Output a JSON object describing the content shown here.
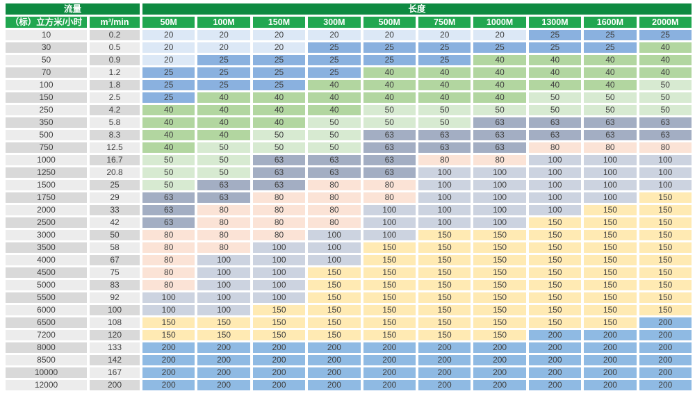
{
  "header": {
    "flow_label": "流量",
    "length_label": "长度"
  },
  "chart_data": {
    "type": "table",
    "column_group_flow": "流量",
    "column_group_length": "长度",
    "flow_columns": [
      "（标）立方米/小时",
      "m³/min"
    ],
    "length_columns": [
      "50M",
      "100M",
      "150M",
      "300M",
      "500M",
      "750M",
      "1000M",
      "1300M",
      "1600M",
      "2000M"
    ],
    "rows": [
      {
        "flow_m3h": "10",
        "flow_m3min": "0.2",
        "diameters": [
          20,
          20,
          20,
          20,
          20,
          20,
          20,
          25,
          25,
          25
        ]
      },
      {
        "flow_m3h": "30",
        "flow_m3min": "0.5",
        "diameters": [
          20,
          20,
          20,
          25,
          25,
          25,
          25,
          25,
          25,
          40
        ]
      },
      {
        "flow_m3h": "50",
        "flow_m3min": "0.9",
        "diameters": [
          20,
          25,
          25,
          25,
          25,
          25,
          40,
          40,
          40,
          40
        ]
      },
      {
        "flow_m3h": "70",
        "flow_m3min": "1.2",
        "diameters": [
          25,
          25,
          25,
          25,
          40,
          40,
          40,
          40,
          40,
          40
        ]
      },
      {
        "flow_m3h": "100",
        "flow_m3min": "1.8",
        "diameters": [
          25,
          25,
          25,
          40,
          40,
          40,
          40,
          40,
          40,
          50
        ]
      },
      {
        "flow_m3h": "150",
        "flow_m3min": "2.5",
        "diameters": [
          25,
          40,
          40,
          40,
          40,
          40,
          40,
          50,
          50,
          50
        ]
      },
      {
        "flow_m3h": "250",
        "flow_m3min": "4.2",
        "diameters": [
          40,
          40,
          40,
          40,
          50,
          50,
          50,
          50,
          50,
          50
        ]
      },
      {
        "flow_m3h": "350",
        "flow_m3min": "5.8",
        "diameters": [
          40,
          40,
          40,
          50,
          50,
          50,
          63,
          63,
          63,
          63
        ]
      },
      {
        "flow_m3h": "500",
        "flow_m3min": "8.3",
        "diameters": [
          40,
          40,
          50,
          50,
          63,
          63,
          63,
          63,
          63,
          63
        ]
      },
      {
        "flow_m3h": "750",
        "flow_m3min": "12.5",
        "diameters": [
          40,
          50,
          50,
          50,
          63,
          63,
          63,
          80,
          80,
          80
        ]
      },
      {
        "flow_m3h": "1000",
        "flow_m3min": "16.7",
        "diameters": [
          50,
          50,
          63,
          63,
          63,
          80,
          80,
          100,
          100,
          100
        ]
      },
      {
        "flow_m3h": "1250",
        "flow_m3min": "20.8",
        "diameters": [
          50,
          50,
          63,
          63,
          63,
          100,
          100,
          100,
          100,
          100
        ]
      },
      {
        "flow_m3h": "1500",
        "flow_m3min": "25",
        "diameters": [
          50,
          63,
          63,
          80,
          80,
          100,
          100,
          100,
          100,
          100
        ]
      },
      {
        "flow_m3h": "1750",
        "flow_m3min": "29",
        "diameters": [
          63,
          63,
          80,
          80,
          80,
          100,
          100,
          100,
          100,
          150
        ]
      },
      {
        "flow_m3h": "2000",
        "flow_m3min": "33",
        "diameters": [
          63,
          80,
          80,
          80,
          100,
          100,
          100,
          100,
          150,
          150
        ]
      },
      {
        "flow_m3h": "2500",
        "flow_m3min": "42",
        "diameters": [
          63,
          80,
          80,
          80,
          100,
          100,
          100,
          150,
          150,
          150
        ]
      },
      {
        "flow_m3h": "3000",
        "flow_m3min": "50",
        "diameters": [
          80,
          80,
          80,
          100,
          100,
          150,
          150,
          150,
          150,
          150
        ]
      },
      {
        "flow_m3h": "3500",
        "flow_m3min": "58",
        "diameters": [
          80,
          80,
          100,
          100,
          150,
          150,
          150,
          150,
          150,
          150
        ]
      },
      {
        "flow_m3h": "4000",
        "flow_m3min": "67",
        "diameters": [
          80,
          100,
          100,
          100,
          150,
          150,
          150,
          150,
          150,
          150
        ]
      },
      {
        "flow_m3h": "4500",
        "flow_m3min": "75",
        "diameters": [
          80,
          100,
          100,
          150,
          150,
          150,
          150,
          150,
          150,
          150
        ]
      },
      {
        "flow_m3h": "5000",
        "flow_m3min": "83",
        "diameters": [
          80,
          100,
          100,
          150,
          150,
          150,
          150,
          150,
          150,
          150
        ]
      },
      {
        "flow_m3h": "5500",
        "flow_m3min": "92",
        "diameters": [
          100,
          100,
          100,
          150,
          150,
          150,
          150,
          150,
          150,
          150
        ]
      },
      {
        "flow_m3h": "6000",
        "flow_m3min": "100",
        "diameters": [
          100,
          100,
          150,
          150,
          150,
          150,
          150,
          150,
          150,
          150
        ]
      },
      {
        "flow_m3h": "6500",
        "flow_m3min": "108",
        "diameters": [
          150,
          150,
          150,
          150,
          150,
          150,
          150,
          150,
          150,
          200
        ]
      },
      {
        "flow_m3h": "7200",
        "flow_m3min": "120",
        "diameters": [
          150,
          150,
          150,
          150,
          150,
          150,
          150,
          200,
          200,
          200
        ]
      },
      {
        "flow_m3h": "8000",
        "flow_m3min": "133",
        "diameters": [
          200,
          200,
          200,
          200,
          200,
          200,
          200,
          200,
          200,
          200
        ]
      },
      {
        "flow_m3h": "8500",
        "flow_m3min": "142",
        "diameters": [
          200,
          200,
          200,
          200,
          200,
          200,
          200,
          200,
          200,
          200
        ]
      },
      {
        "flow_m3h": "10000",
        "flow_m3min": "167",
        "diameters": [
          200,
          200,
          200,
          200,
          200,
          200,
          200,
          200,
          200,
          200
        ]
      },
      {
        "flow_m3h": "12000",
        "flow_m3min": "200",
        "diameters": [
          200,
          200,
          200,
          200,
          200,
          200,
          200,
          200,
          200,
          200
        ]
      }
    ]
  },
  "colors": {
    "header_top_green": "#0e8a41",
    "header_sub_green": "#21a750",
    "row_light_gray": "#ececec",
    "row_dark_gray": "#d9d9d9",
    "cell_text": "#3f3f3f",
    "header_text": "#ffffff",
    "value_colors": {
      "20": "#dce8f6",
      "25": "#8ab1df",
      "40": "#b2d6a0",
      "50": "#d7ead1",
      "63": "#a3aec3",
      "80": "#fbe3d6",
      "100": "#ccd3e0",
      "150": "#ffeab3",
      "200": "#8fbae3"
    }
  }
}
